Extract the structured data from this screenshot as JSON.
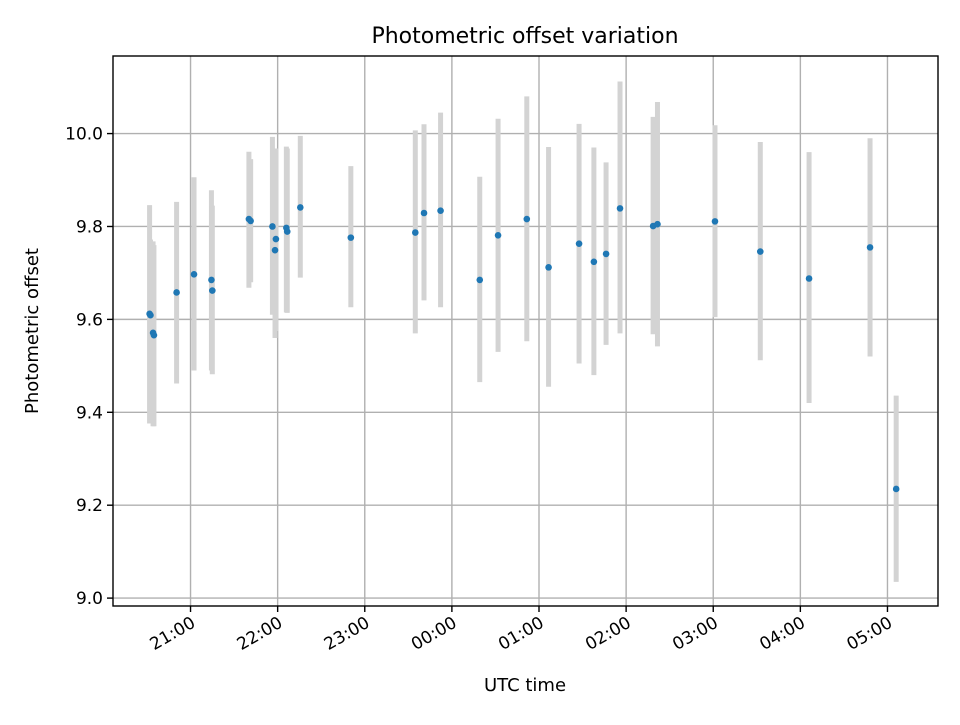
{
  "chart_data": {
    "type": "scatter",
    "title": "Photometric offset variation",
    "xlabel": "UTC time",
    "ylabel": "Photometric offset",
    "x_unit": "hours since 00:00 UTC (negative = previous day)",
    "xlim": [
      -3.89,
      5.58
    ],
    "ylim": [
      8.983,
      10.167
    ],
    "x_ticks": [
      {
        "value": -3,
        "label": "21:00"
      },
      {
        "value": -2,
        "label": "22:00"
      },
      {
        "value": -1,
        "label": "23:00"
      },
      {
        "value": 0,
        "label": "00:00"
      },
      {
        "value": 1,
        "label": "01:00"
      },
      {
        "value": 2,
        "label": "02:00"
      },
      {
        "value": 3,
        "label": "03:00"
      },
      {
        "value": 4,
        "label": "04:00"
      },
      {
        "value": 5,
        "label": "05:00"
      }
    ],
    "y_ticks": [
      {
        "value": 9.0,
        "label": "9.0"
      },
      {
        "value": 9.2,
        "label": "9.2"
      },
      {
        "value": 9.4,
        "label": "9.4"
      },
      {
        "value": 9.6,
        "label": "9.6"
      },
      {
        "value": 9.8,
        "label": "9.8"
      },
      {
        "value": 10.0,
        "label": "10.0"
      }
    ],
    "grid": true,
    "marker_color": "#1f77b4",
    "errorbar_color": "#d3d3d3",
    "series": [
      {
        "points": [
          {
            "x": -3.47,
            "y": 9.612,
            "lo": 9.376,
            "hi": 9.846
          },
          {
            "x": -3.46,
            "y": 9.609,
            "lo": 9.38,
            "hi": 9.772
          },
          {
            "x": -3.43,
            "y": 9.571,
            "lo": 9.37,
            "hi": 9.768
          },
          {
            "x": -3.42,
            "y": 9.566,
            "lo": 9.37,
            "hi": 9.76
          },
          {
            "x": -3.16,
            "y": 9.658,
            "lo": 9.462,
            "hi": 9.853
          },
          {
            "x": -2.96,
            "y": 9.697,
            "lo": 9.49,
            "hi": 9.906
          },
          {
            "x": -2.76,
            "y": 9.685,
            "lo": 9.49,
            "hi": 9.878
          },
          {
            "x": -2.75,
            "y": 9.662,
            "lo": 9.482,
            "hi": 9.845
          },
          {
            "x": -2.33,
            "y": 9.816,
            "lo": 9.668,
            "hi": 9.961
          },
          {
            "x": -2.31,
            "y": 9.812,
            "lo": 9.68,
            "hi": 9.945
          },
          {
            "x": -2.06,
            "y": 9.8,
            "lo": 9.61,
            "hi": 9.993
          },
          {
            "x": -2.03,
            "y": 9.749,
            "lo": 9.56,
            "hi": 9.94
          },
          {
            "x": -2.02,
            "y": 9.773,
            "lo": 9.575,
            "hi": 9.968
          },
          {
            "x": -1.9,
            "y": 9.797,
            "lo": 9.615,
            "hi": 9.972
          },
          {
            "x": -1.89,
            "y": 9.789,
            "lo": 9.614,
            "hi": 9.968
          },
          {
            "x": -1.74,
            "y": 9.841,
            "lo": 9.69,
            "hi": 9.995
          },
          {
            "x": -1.16,
            "y": 9.776,
            "lo": 9.626,
            "hi": 9.93
          },
          {
            "x": -0.42,
            "y": 9.787,
            "lo": 9.57,
            "hi": 10.007
          },
          {
            "x": -0.32,
            "y": 9.829,
            "lo": 9.641,
            "hi": 10.02
          },
          {
            "x": -0.13,
            "y": 9.834,
            "lo": 9.626,
            "hi": 10.045
          },
          {
            "x": 0.32,
            "y": 9.685,
            "lo": 9.465,
            "hi": 9.907
          },
          {
            "x": 0.53,
            "y": 9.781,
            "lo": 9.53,
            "hi": 10.032
          },
          {
            "x": 0.86,
            "y": 9.816,
            "lo": 9.553,
            "hi": 10.08
          },
          {
            "x": 1.11,
            "y": 9.712,
            "lo": 9.455,
            "hi": 9.971
          },
          {
            "x": 1.46,
            "y": 9.763,
            "lo": 9.505,
            "hi": 10.021
          },
          {
            "x": 1.63,
            "y": 9.724,
            "lo": 9.48,
            "hi": 9.97
          },
          {
            "x": 1.77,
            "y": 9.741,
            "lo": 9.545,
            "hi": 9.938
          },
          {
            "x": 1.93,
            "y": 9.839,
            "lo": 9.57,
            "hi": 10.112
          },
          {
            "x": 2.31,
            "y": 9.801,
            "lo": 9.568,
            "hi": 10.036
          },
          {
            "x": 2.36,
            "y": 9.805,
            "lo": 9.542,
            "hi": 10.068
          },
          {
            "x": 3.02,
            "y": 9.811,
            "lo": 9.605,
            "hi": 10.018
          },
          {
            "x": 3.54,
            "y": 9.746,
            "lo": 9.512,
            "hi": 9.982
          },
          {
            "x": 4.1,
            "y": 9.688,
            "lo": 9.42,
            "hi": 9.96
          },
          {
            "x": 4.8,
            "y": 9.755,
            "lo": 9.52,
            "hi": 9.99
          },
          {
            "x": 5.1,
            "y": 9.235,
            "lo": 9.035,
            "hi": 9.436
          }
        ]
      }
    ]
  }
}
